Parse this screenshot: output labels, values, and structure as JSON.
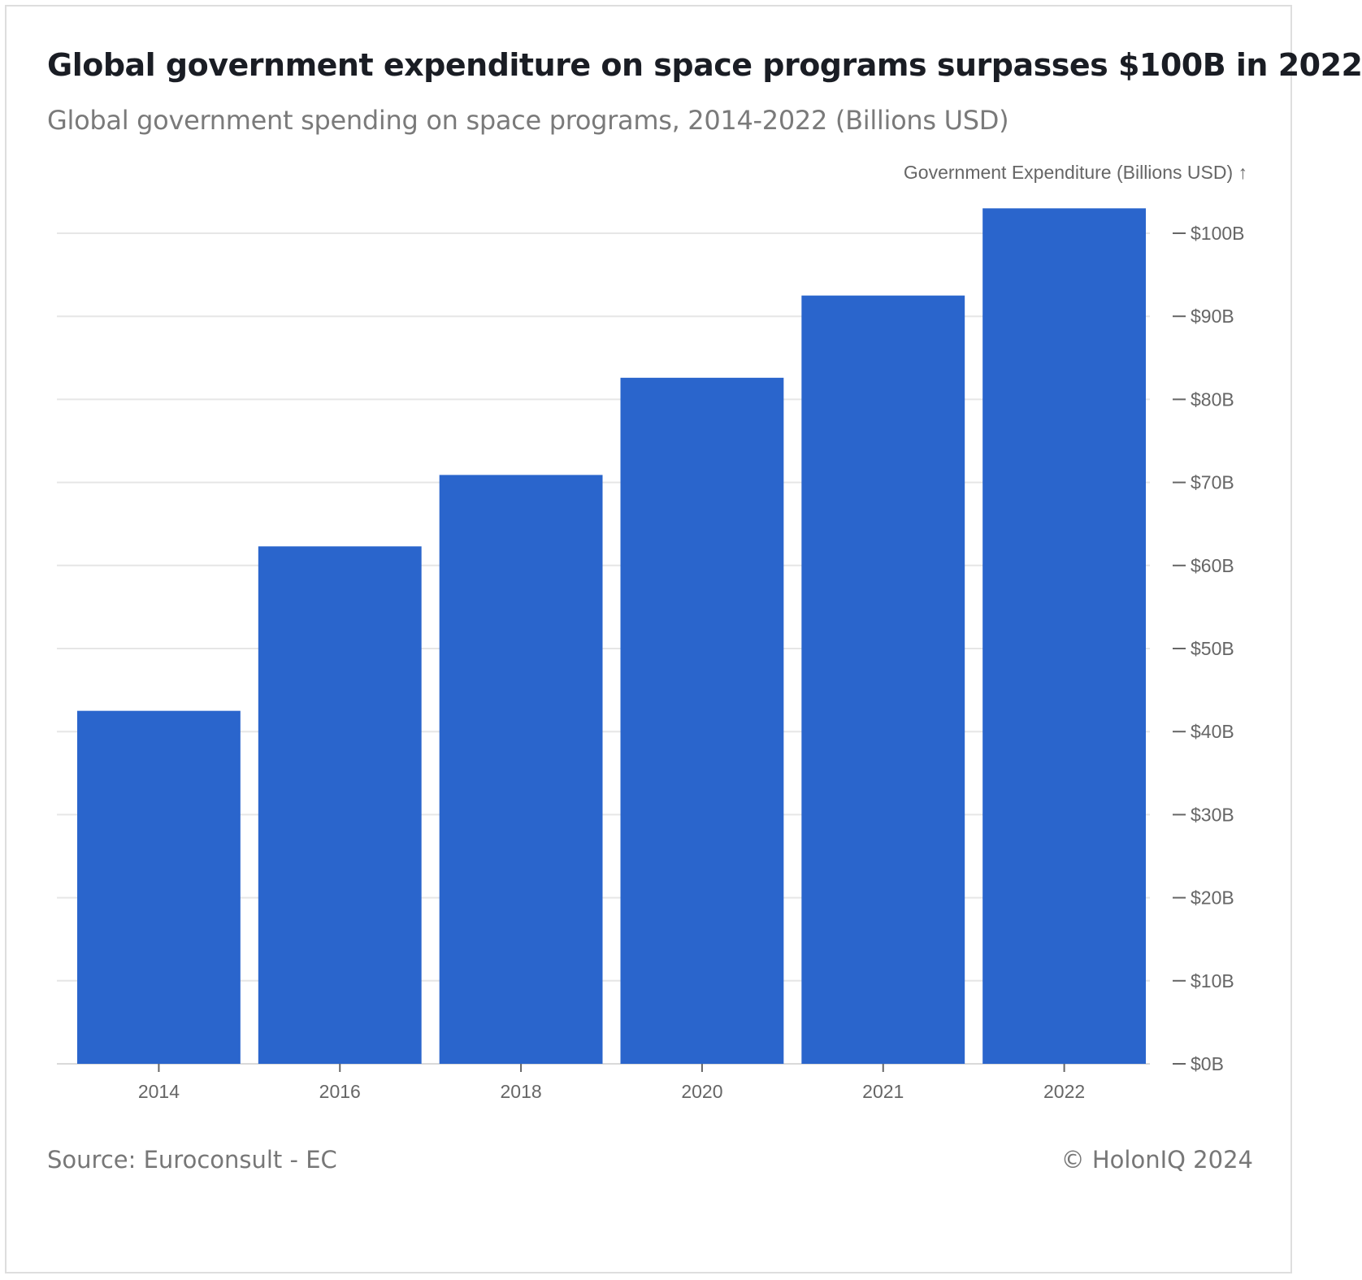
{
  "title": "Global government expenditure on space programs surpasses $100B in 2022",
  "subtitle": "Global government spending on space programs, 2014-2022 (Billions USD)",
  "source": "Source: Euroconsult - EC",
  "copyright": "© HolonIQ 2024",
  "colors": {
    "bar": "#2A65CC",
    "grid": "#e6e6e6",
    "axis_text": "#666666"
  },
  "chart_data": {
    "type": "bar",
    "categories": [
      "2014",
      "2016",
      "2018",
      "2020",
      "2021",
      "2022"
    ],
    "values": [
      42.5,
      62.3,
      70.9,
      82.6,
      92.5,
      103
    ],
    "title": "Global government expenditure on space programs surpasses $100B in 2022",
    "subtitle": "Global government spending on space programs, 2014-2022 (Billions USD)",
    "ylabel": "Government Expenditure (Billions USD) ↑",
    "xlabel": "",
    "ylim": [
      0,
      100
    ],
    "yticks": [
      0,
      10,
      20,
      30,
      40,
      50,
      60,
      70,
      80,
      90,
      100
    ],
    "ytick_labels": [
      "$0B",
      "$10B",
      "$20B",
      "$30B",
      "$40B",
      "$50B",
      "$60B",
      "$70B",
      "$80B",
      "$90B",
      "$100B"
    ],
    "grid": true,
    "y_axis_side": "right"
  }
}
